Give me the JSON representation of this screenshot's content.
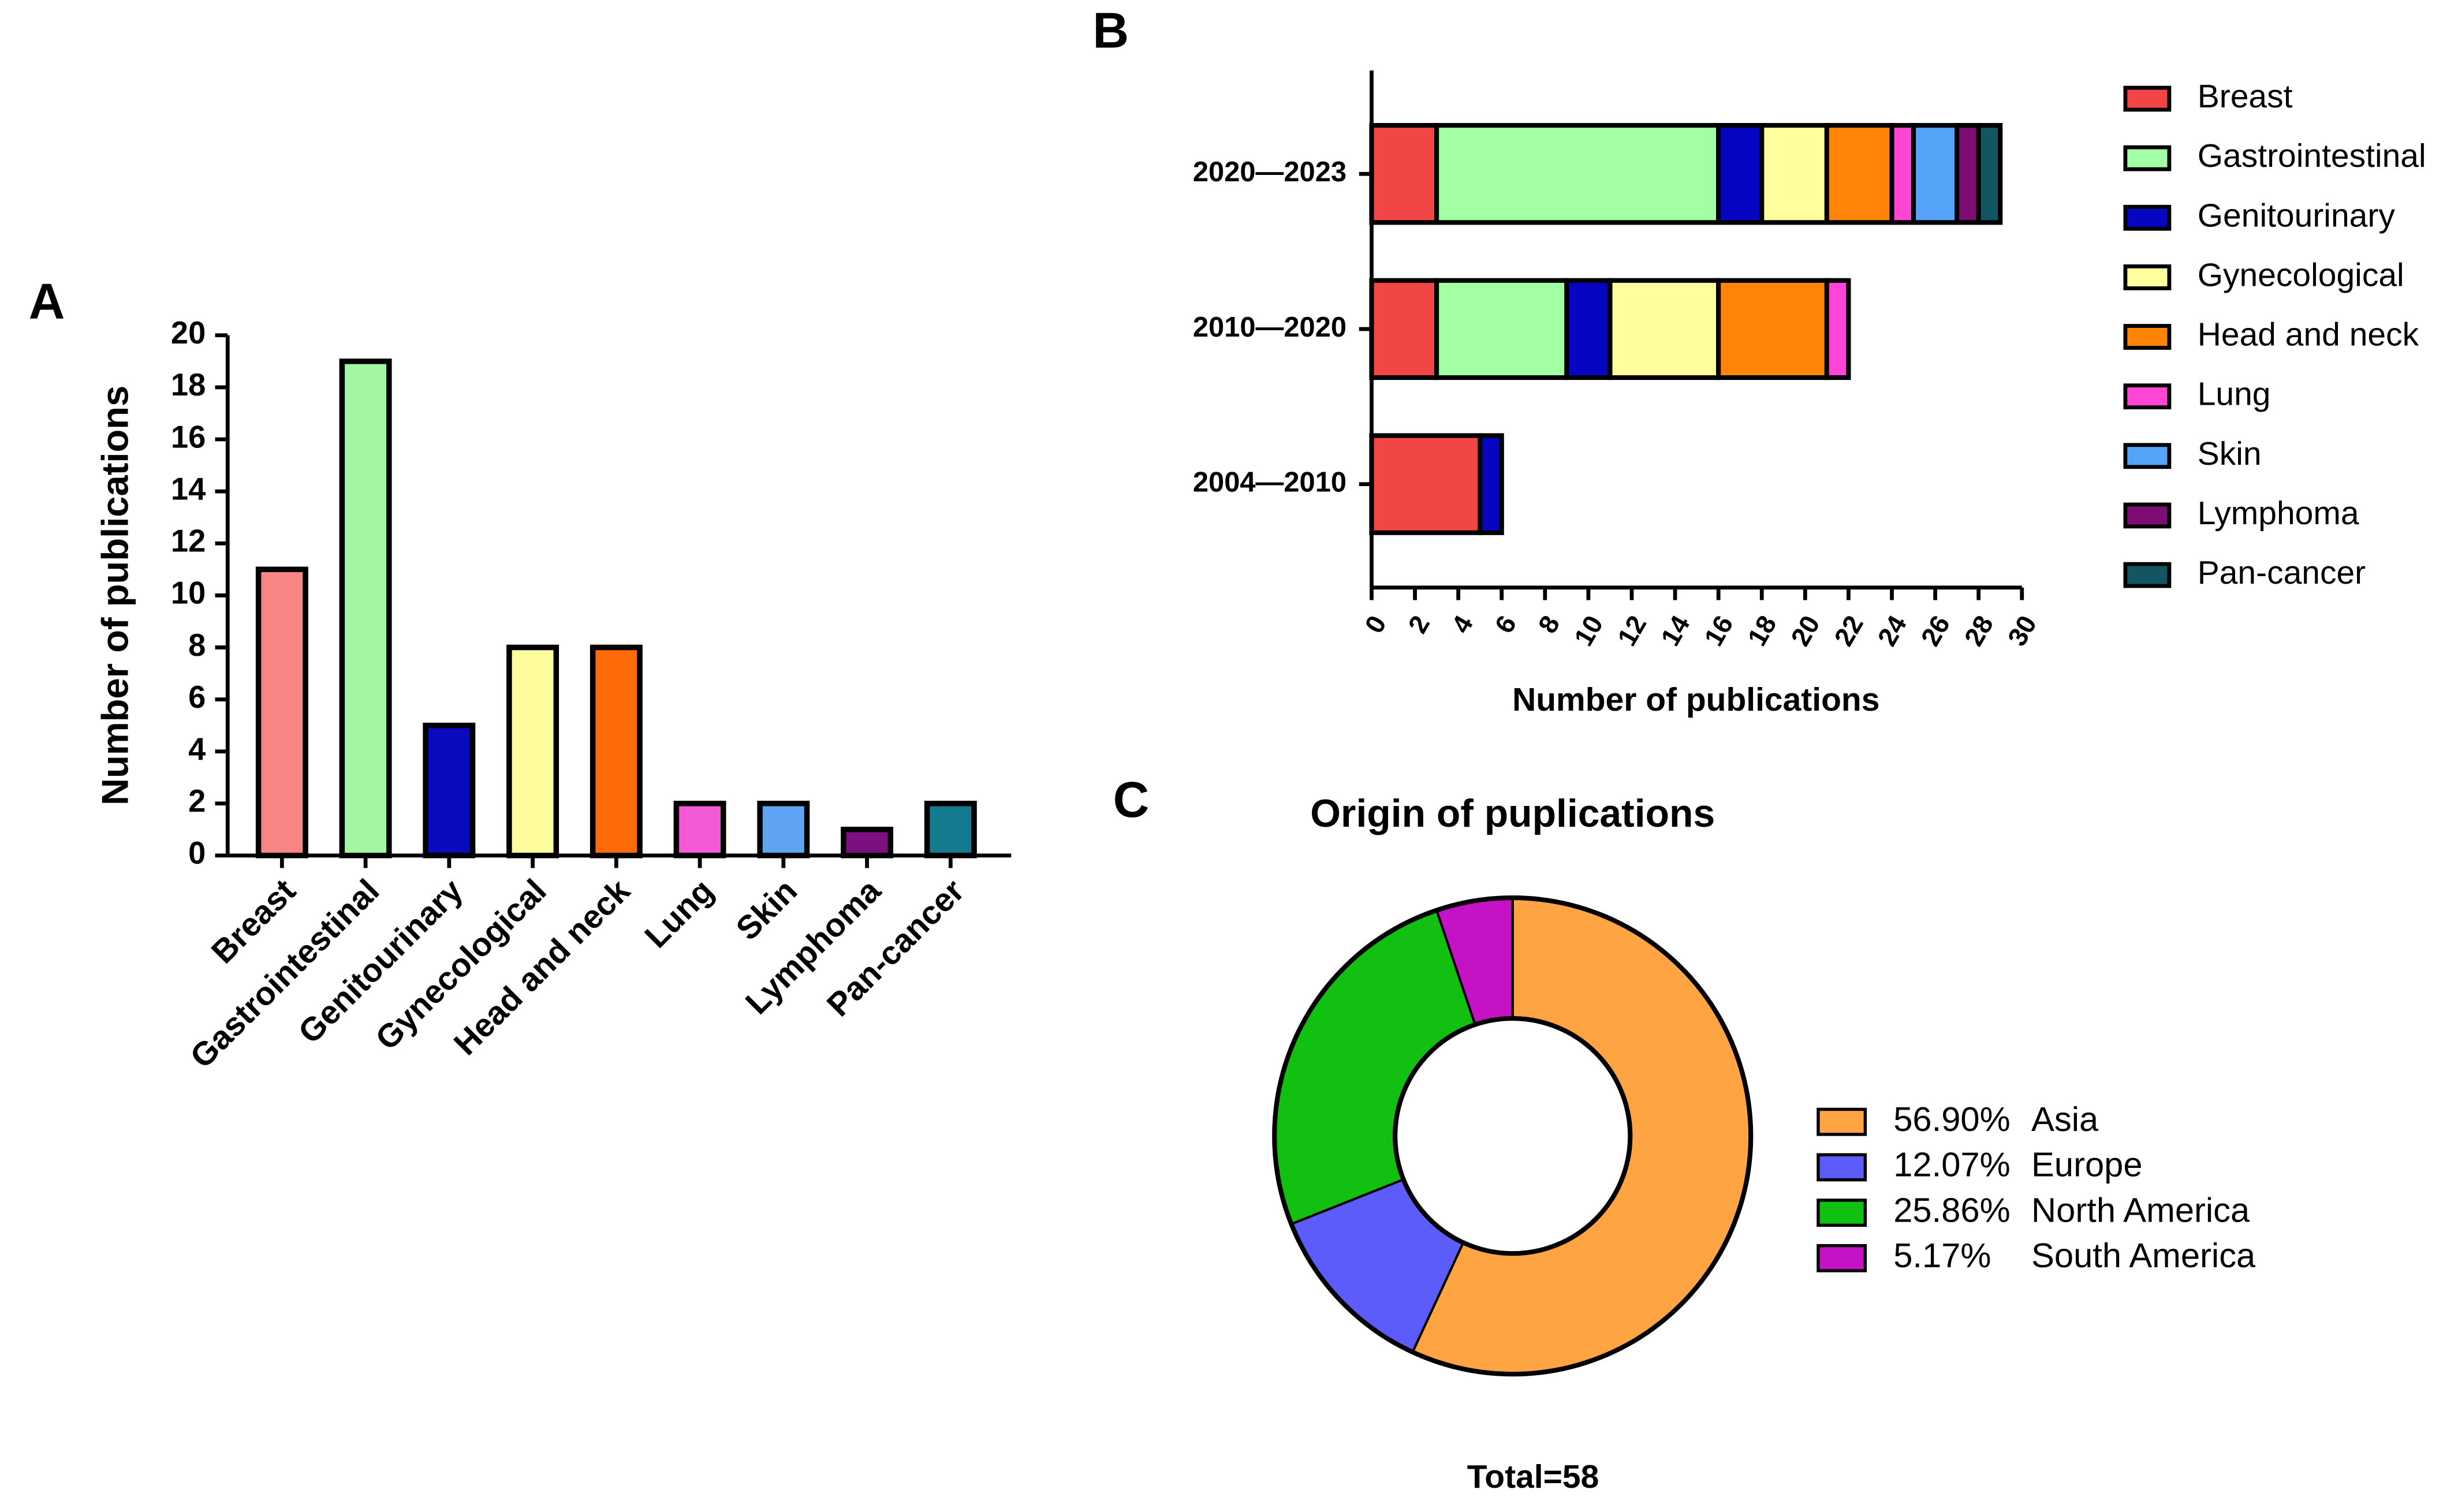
{
  "chart_data": [
    {
      "type": "bar",
      "panel": "A",
      "ylabel": "Number of publications",
      "categories": [
        "Breast",
        "Gastrointestinal",
        "Genitourinary",
        "Gynecological",
        "Head and neck",
        "Lung",
        "Skin",
        "Lymphoma",
        "Pan-cancer"
      ],
      "values": [
        11,
        19,
        5,
        8,
        8,
        2,
        2,
        1,
        2
      ],
      "colors": [
        "#f98484",
        "#a3f7a3",
        "#0a0abf",
        "#fdfd9e",
        "#ff6a08",
        "#f25ad6",
        "#5ea4f2",
        "#7e0f80",
        "#137a90"
      ],
      "ylim": [
        0,
        20
      ],
      "yticks": [
        0,
        2,
        4,
        6,
        8,
        10,
        12,
        14,
        16,
        18,
        20
      ]
    },
    {
      "type": "bar",
      "orientation": "horizontal",
      "stacked": true,
      "panel": "B",
      "xlabel": "Number of publications",
      "categories": [
        "2020—2023",
        "2010—2020",
        "2004—2010"
      ],
      "series": [
        {
          "name": "Breast",
          "color": "#f24545",
          "values": [
            3,
            3,
            5
          ]
        },
        {
          "name": "Gastrointestinal",
          "color": "#a3ffa3",
          "values": [
            13,
            6,
            0
          ]
        },
        {
          "name": "Genitourinary",
          "color": "#0505c2",
          "values": [
            2,
            2,
            1
          ]
        },
        {
          "name": "Gynecological",
          "color": "#ffff9e",
          "values": [
            3,
            5,
            0
          ]
        },
        {
          "name": "Head and neck",
          "color": "#ff8408",
          "values": [
            3,
            5,
            0
          ]
        },
        {
          "name": "Lung",
          "color": "#ff45d6",
          "values": [
            1,
            1,
            0
          ]
        },
        {
          "name": "Skin",
          "color": "#56a4fa",
          "values": [
            2,
            0,
            0
          ]
        },
        {
          "name": "Lymphoma",
          "color": "#7d0d72",
          "values": [
            1,
            0,
            0
          ]
        },
        {
          "name": "Pan-cancer",
          "color": "#125563",
          "values": [
            1,
            0,
            0
          ]
        }
      ],
      "xlim": [
        0,
        30
      ],
      "xticks": [
        0,
        2,
        4,
        6,
        8,
        10,
        12,
        14,
        16,
        18,
        20,
        22,
        24,
        26,
        28,
        30
      ]
    },
    {
      "type": "donut",
      "panel": "C",
      "title": "Origin of puplications",
      "categories": [
        "Asia",
        "Europe",
        "North America",
        "South America"
      ],
      "values": [
        56.9,
        12.07,
        25.86,
        5.17
      ],
      "value_labels": [
        "56.90%",
        "12.07%",
        "25.86%",
        "5.17%"
      ],
      "colors": [
        "#ffa442",
        "#5c5cfa",
        "#12c012",
        "#c412c4"
      ],
      "annotation": "Total=58"
    }
  ]
}
